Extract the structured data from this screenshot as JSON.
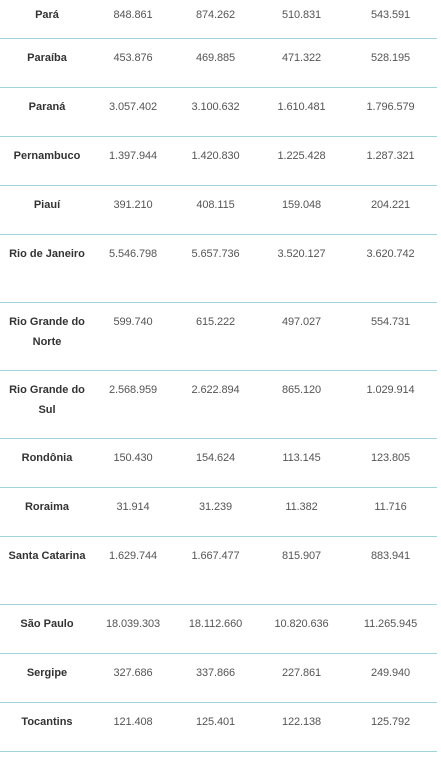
{
  "table": {
    "rows": [
      {
        "state": "Pará",
        "v1": "848.861",
        "v2": "874.262",
        "v3": "510.831",
        "v4": "543.591"
      },
      {
        "state": "Paraíba",
        "v1": "453.876",
        "v2": "469.885",
        "v3": "471.322",
        "v4": "528.195"
      },
      {
        "state": "Paraná",
        "v1": "3.057.402",
        "v2": "3.100.632",
        "v3": "1.610.481",
        "v4": "1.796.579"
      },
      {
        "state": "Pernambuco",
        "v1": "1.397.944",
        "v2": "1.420.830",
        "v3": "1.225.428",
        "v4": "1.287.321"
      },
      {
        "state": "Piauí",
        "v1": "391.210",
        "v2": "408.115",
        "v3": "159.048",
        "v4": "204.221"
      },
      {
        "state": "Rio de Janeiro",
        "v1": "5.546.798",
        "v2": "5.657.736",
        "v3": "3.520.127",
        "v4": "3.620.742"
      },
      {
        "state": "Rio Grande do Norte",
        "v1": "599.740",
        "v2": "615.222",
        "v3": "497.027",
        "v4": "554.731"
      },
      {
        "state": "Rio Grande do Sul",
        "v1": "2.568.959",
        "v2": "2.622.894",
        "v3": "865.120",
        "v4": "1.029.914"
      },
      {
        "state": "Rondônia",
        "v1": "150.430",
        "v2": "154.624",
        "v3": "113.145",
        "v4": "123.805"
      },
      {
        "state": "Roraima",
        "v1": "31.914",
        "v2": "31.239",
        "v3": "11.382",
        "v4": "11.716"
      },
      {
        "state": "Santa Catarina",
        "v1": "1.629.744",
        "v2": "1.667.477",
        "v3": "815.907",
        "v4": "883.941"
      },
      {
        "state": "São Paulo",
        "v1": "18.039.303",
        "v2": "18.112.660",
        "v3": "10.820.636",
        "v4": "11.265.945"
      },
      {
        "state": "Sergipe",
        "v1": "327.686",
        "v2": "337.866",
        "v3": "227.861",
        "v4": "249.940"
      },
      {
        "state": "Tocantins",
        "v1": "121.408",
        "v2": "125.401",
        "v3": "122.138",
        "v4": "125.792"
      }
    ]
  },
  "colors": {
    "divider": "#9fd3dd",
    "text": "#333333"
  }
}
